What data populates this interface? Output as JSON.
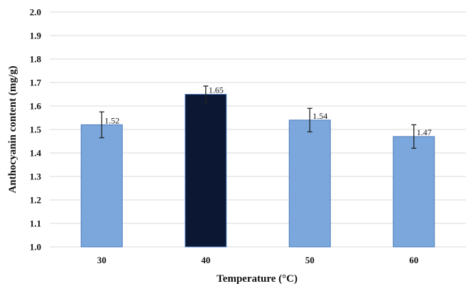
{
  "chart_data": {
    "type": "bar",
    "title": "",
    "xlabel": "Temperature (°C)",
    "ylabel": "Anthocyanin content (mg/g)",
    "ylim": [
      1.0,
      2.0
    ],
    "yticks": [
      "1.0",
      "1.1",
      "1.2",
      "1.3",
      "1.4",
      "1.5",
      "1.6",
      "1.7",
      "1.8",
      "1.9",
      "2.0"
    ],
    "grid": true,
    "categories": [
      "30",
      "40",
      "50",
      "60"
    ],
    "values": [
      1.52,
      1.65,
      1.54,
      1.47
    ],
    "value_labels": [
      "1.52",
      "1.65",
      "1.54",
      "1.47"
    ],
    "errors": [
      0.055,
      0.035,
      0.05,
      0.05
    ],
    "bar_colors": [
      "#7ba7dc",
      "#0b1733",
      "#7ba7dc",
      "#7ba7dc"
    ],
    "bar_edge_color": "#4a7bbd"
  }
}
